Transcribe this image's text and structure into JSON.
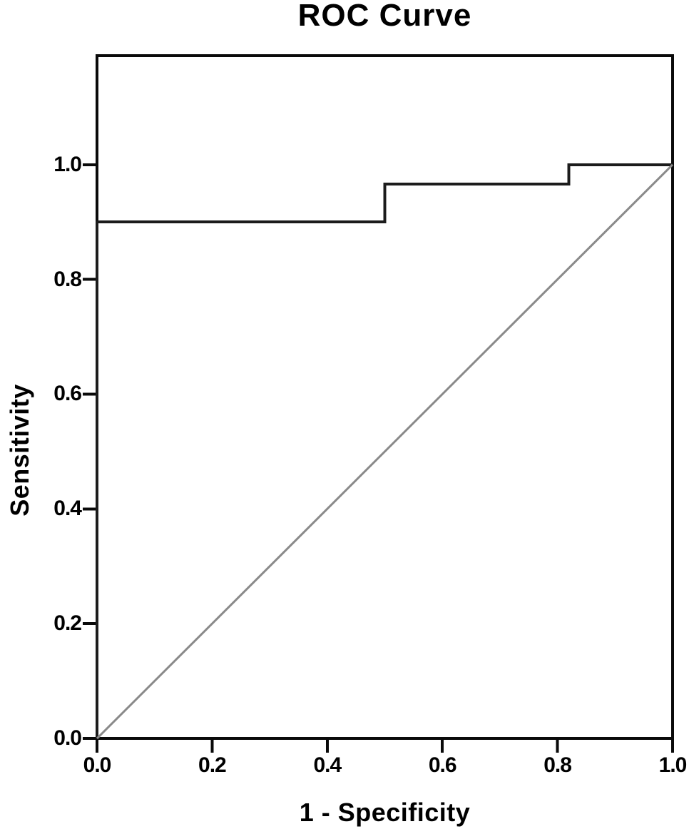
{
  "figure": {
    "title": "ROC Curve"
  },
  "colors": {
    "background": "#ffffff",
    "frame": "#0a0a0a",
    "tick": "#0a0a0a",
    "text": "#000000",
    "roc_curve": "#1c1c1c",
    "reference_line": "#8a8a8a"
  },
  "chart_data": {
    "type": "line",
    "title": "ROC Curve",
    "xlabel": "1 - Specificity",
    "ylabel": "Sensitivity",
    "xlim": [
      0.0,
      1.0
    ],
    "ylim": [
      0.0,
      1.19
    ],
    "grid": false,
    "legend": false,
    "x_ticks": [
      {
        "value": 0.0,
        "label": "0.0"
      },
      {
        "value": 0.2,
        "label": "0.2"
      },
      {
        "value": 0.4,
        "label": "0.4"
      },
      {
        "value": 0.6,
        "label": "0.6"
      },
      {
        "value": 0.8,
        "label": "0.8"
      },
      {
        "value": 1.0,
        "label": "1.0"
      }
    ],
    "y_ticks": [
      {
        "value": 0.0,
        "label": "0.0"
      },
      {
        "value": 0.2,
        "label": "0.2"
      },
      {
        "value": 0.4,
        "label": "0.4"
      },
      {
        "value": 0.6,
        "label": "0.6"
      },
      {
        "value": 0.8,
        "label": "0.8"
      },
      {
        "value": 1.0,
        "label": "1.0"
      }
    ],
    "series": [
      {
        "name": "ROC curve",
        "style": "step",
        "color": "#1c1c1c",
        "stroke_width": 4,
        "points": [
          [
            0.0,
            0.0
          ],
          [
            0.0,
            0.9
          ],
          [
            0.5,
            0.9
          ],
          [
            0.5,
            0.966
          ],
          [
            0.82,
            0.966
          ],
          [
            0.82,
            1.0
          ],
          [
            1.0,
            1.0
          ]
        ]
      },
      {
        "name": "Reference diagonal",
        "style": "straight",
        "color": "#8a8a8a",
        "stroke_width": 3,
        "points": [
          [
            0.0,
            0.0
          ],
          [
            1.0,
            1.0
          ]
        ]
      }
    ]
  }
}
